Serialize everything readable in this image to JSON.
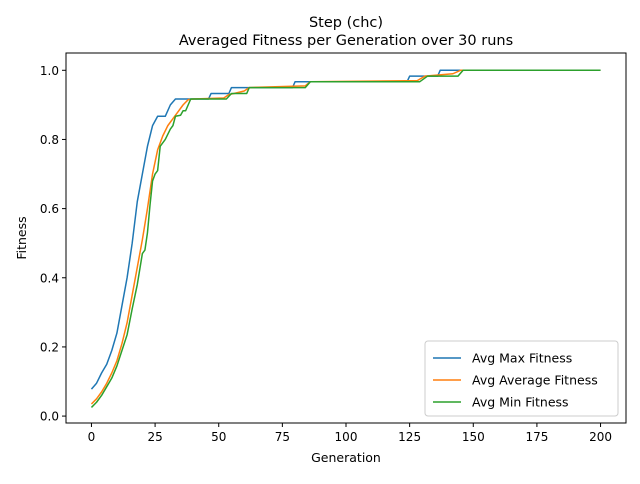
{
  "chart_data": {
    "type": "line",
    "title_line1": "Step (chc)",
    "title_line2": "Averaged Fitness per Generation over 30 runs",
    "xlabel": "Generation",
    "ylabel": "Fitness",
    "xlim": [
      -10,
      210
    ],
    "ylim": [
      -0.02,
      1.05
    ],
    "xticks": [
      0,
      25,
      50,
      75,
      100,
      125,
      150,
      175,
      200
    ],
    "yticks": [
      0.0,
      0.2,
      0.4,
      0.6,
      0.8,
      1.0
    ],
    "grid": false,
    "legend_position": "lower right",
    "series": [
      {
        "name": "Avg Max Fitness",
        "color": "#1f77b4",
        "points": [
          [
            0,
            0.078
          ],
          [
            2,
            0.095
          ],
          [
            4,
            0.125
          ],
          [
            6,
            0.15
          ],
          [
            8,
            0.19
          ],
          [
            10,
            0.24
          ],
          [
            12,
            0.32
          ],
          [
            14,
            0.4
          ],
          [
            16,
            0.5
          ],
          [
            18,
            0.62
          ],
          [
            20,
            0.7
          ],
          [
            22,
            0.78
          ],
          [
            24,
            0.84
          ],
          [
            26,
            0.867
          ],
          [
            29,
            0.867
          ],
          [
            31,
            0.9
          ],
          [
            33,
            0.917
          ],
          [
            46,
            0.917
          ],
          [
            47,
            0.933
          ],
          [
            54,
            0.933
          ],
          [
            55,
            0.95
          ],
          [
            79,
            0.95
          ],
          [
            80,
            0.967
          ],
          [
            124,
            0.967
          ],
          [
            125,
            0.983
          ],
          [
            136,
            0.983
          ],
          [
            137,
            1.0
          ],
          [
            200,
            1.0
          ]
        ]
      },
      {
        "name": "Avg Average Fitness",
        "color": "#ff7f0e",
        "points": [
          [
            0,
            0.035
          ],
          [
            2,
            0.05
          ],
          [
            4,
            0.07
          ],
          [
            6,
            0.095
          ],
          [
            8,
            0.125
          ],
          [
            10,
            0.16
          ],
          [
            12,
            0.21
          ],
          [
            14,
            0.27
          ],
          [
            16,
            0.35
          ],
          [
            18,
            0.43
          ],
          [
            20,
            0.51
          ],
          [
            22,
            0.6
          ],
          [
            24,
            0.7
          ],
          [
            26,
            0.77
          ],
          [
            28,
            0.81
          ],
          [
            30,
            0.84
          ],
          [
            32,
            0.86
          ],
          [
            34,
            0.88
          ],
          [
            36,
            0.9
          ],
          [
            38,
            0.915
          ],
          [
            40,
            0.917
          ],
          [
            52,
            0.92
          ],
          [
            54,
            0.93
          ],
          [
            56,
            0.933
          ],
          [
            60,
            0.94
          ],
          [
            62,
            0.95
          ],
          [
            84,
            0.955
          ],
          [
            86,
            0.967
          ],
          [
            128,
            0.97
          ],
          [
            131,
            0.983
          ],
          [
            142,
            0.99
          ],
          [
            145,
            1.0
          ],
          [
            200,
            1.0
          ]
        ]
      },
      {
        "name": "Avg Min Fitness",
        "color": "#2ca02c",
        "points": [
          [
            0,
            0.025
          ],
          [
            2,
            0.04
          ],
          [
            4,
            0.06
          ],
          [
            6,
            0.085
          ],
          [
            8,
            0.11
          ],
          [
            10,
            0.145
          ],
          [
            12,
            0.19
          ],
          [
            14,
            0.235
          ],
          [
            16,
            0.31
          ],
          [
            18,
            0.38
          ],
          [
            20,
            0.47
          ],
          [
            21,
            0.48
          ],
          [
            22,
            0.53
          ],
          [
            23,
            0.61
          ],
          [
            24,
            0.68
          ],
          [
            25,
            0.7
          ],
          [
            26,
            0.71
          ],
          [
            27,
            0.78
          ],
          [
            29,
            0.8
          ],
          [
            31,
            0.83
          ],
          [
            32,
            0.84
          ],
          [
            33,
            0.867
          ],
          [
            35,
            0.87
          ],
          [
            36,
            0.883
          ],
          [
            37,
            0.883
          ],
          [
            39,
            0.917
          ],
          [
            53,
            0.917
          ],
          [
            55,
            0.933
          ],
          [
            61,
            0.933
          ],
          [
            62,
            0.95
          ],
          [
            84,
            0.95
          ],
          [
            86,
            0.967
          ],
          [
            129,
            0.967
          ],
          [
            132,
            0.983
          ],
          [
            144,
            0.983
          ],
          [
            146,
            1.0
          ],
          [
            200,
            1.0
          ]
        ]
      }
    ]
  }
}
